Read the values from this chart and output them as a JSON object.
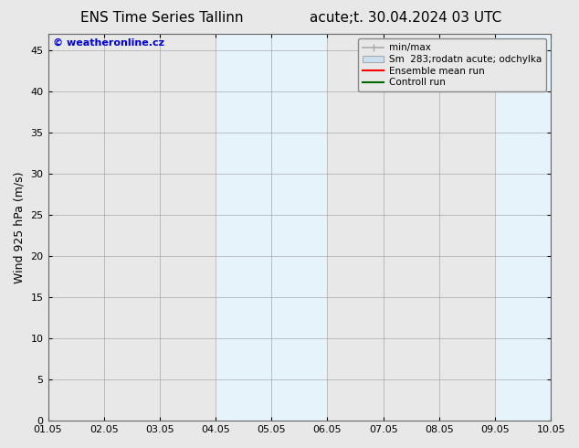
{
  "title_left": "ENS Time Series Tallinn",
  "title_right": "acute;t. 30.04.2024 03 UTC",
  "ylabel": "Wind 925 hPa (m/s)",
  "xlabel_ticks": [
    "01.05",
    "02.05",
    "03.05",
    "04.05",
    "05.05",
    "06.05",
    "07.05",
    "08.05",
    "09.05",
    "10.05"
  ],
  "ylim": [
    0,
    47
  ],
  "yticks": [
    0,
    5,
    10,
    15,
    20,
    25,
    30,
    35,
    40,
    45
  ],
  "bg_color": "#e8e8e8",
  "plot_bg_color": "#e8e8e8",
  "shaded_bands": [
    {
      "xstart": 3.0,
      "xend": 4.0,
      "color": "#d0e8f8"
    },
    {
      "xstart": 4.0,
      "xend": 5.0,
      "color": "#d0e8f8"
    },
    {
      "xstart": 8.0,
      "xend": 9.0,
      "color": "#d0e8f8"
    },
    {
      "xstart": 9.0,
      "xend": 9.5,
      "color": "#d0e8f8"
    }
  ],
  "watermark_text": "© weatheronline.cz",
  "watermark_color": "#0000cc",
  "legend_entries": [
    {
      "label": "min/max",
      "color": "#aaaaaa",
      "type": "minmax"
    },
    {
      "label": "Sm  283;rodatn acute; odchylka",
      "color": "#cce0f0",
      "type": "band"
    },
    {
      "label": "Ensemble mean run",
      "color": "#ff0000",
      "type": "line"
    },
    {
      "label": "Controll run",
      "color": "#006600",
      "type": "line"
    }
  ],
  "title_fontsize": 11,
  "tick_fontsize": 8,
  "ylabel_fontsize": 9,
  "legend_fontsize": 7.5
}
